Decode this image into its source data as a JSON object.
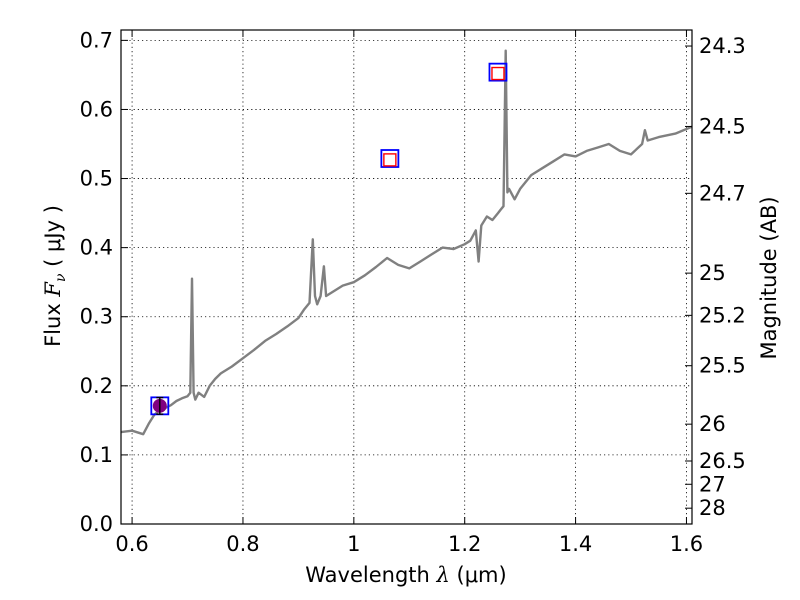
{
  "chart_data": {
    "type": "line",
    "xlabel": "Wavelength  λ (μm)",
    "xlabel_parts": {
      "prefix": "Wavelength  ",
      "symbol": "λ",
      "unit": " (μm)"
    },
    "ylabel": "Flux  Fν  ( μJy )",
    "ylabel_parts": {
      "prefix": "Flux  ",
      "symbol": "F",
      "subscript": "ν",
      "unit": "  ( μJy )"
    },
    "y2label": "Magnitude (AB)",
    "xlim": [
      0.58,
      1.61
    ],
    "ylim": [
      0.0,
      0.715
    ],
    "xticks": [
      {
        "value": 0.6,
        "label": "0.6"
      },
      {
        "value": 0.8,
        "label": "0.8"
      },
      {
        "value": 1.0,
        "label": "1"
      },
      {
        "value": 1.2,
        "label": "1.2"
      },
      {
        "value": 1.4,
        "label": "1.4"
      },
      {
        "value": 1.6,
        "label": "1.6"
      }
    ],
    "yticks": [
      {
        "value": 0.0,
        "label": "0.0"
      },
      {
        "value": 0.1,
        "label": "0.1"
      },
      {
        "value": 0.2,
        "label": "0.2"
      },
      {
        "value": 0.3,
        "label": "0.3"
      },
      {
        "value": 0.4,
        "label": "0.4"
      },
      {
        "value": 0.5,
        "label": "0.5"
      },
      {
        "value": 0.6,
        "label": "0.6"
      },
      {
        "value": 0.7,
        "label": "0.7"
      }
    ],
    "y2ticks": [
      {
        "flux": 0.6918,
        "label": "24.3"
      },
      {
        "flux": 0.5754,
        "label": "24.5"
      },
      {
        "flux": 0.4786,
        "label": "24.7"
      },
      {
        "flux": 0.3631,
        "label": "25"
      },
      {
        "flux": 0.302,
        "label": "25.2"
      },
      {
        "flux": 0.2291,
        "label": "25.5"
      },
      {
        "flux": 0.1445,
        "label": "26"
      },
      {
        "flux": 0.0912,
        "label": "26.5"
      },
      {
        "flux": 0.0575,
        "label": "27"
      },
      {
        "flux": 0.0229,
        "label": "28"
      }
    ],
    "grid": true,
    "spectrum": {
      "color": "#808080",
      "x": [
        0.58,
        0.6,
        0.62,
        0.63,
        0.64,
        0.65,
        0.66,
        0.67,
        0.68,
        0.69,
        0.7,
        0.705,
        0.708,
        0.711,
        0.714,
        0.72,
        0.73,
        0.74,
        0.75,
        0.76,
        0.78,
        0.8,
        0.82,
        0.84,
        0.86,
        0.88,
        0.9,
        0.91,
        0.92,
        0.926,
        0.93,
        0.934,
        0.94,
        0.946,
        0.95,
        0.96,
        0.98,
        1.0,
        1.02,
        1.04,
        1.06,
        1.08,
        1.1,
        1.12,
        1.14,
        1.16,
        1.18,
        1.2,
        1.21,
        1.22,
        1.225,
        1.23,
        1.24,
        1.25,
        1.26,
        1.265,
        1.27,
        1.274,
        1.277,
        1.28,
        1.29,
        1.3,
        1.32,
        1.34,
        1.36,
        1.38,
        1.4,
        1.42,
        1.44,
        1.46,
        1.48,
        1.5,
        1.52,
        1.525,
        1.53,
        1.55,
        1.58,
        1.61
      ],
      "y": [
        0.133,
        0.135,
        0.13,
        0.145,
        0.158,
        0.165,
        0.168,
        0.172,
        0.178,
        0.182,
        0.185,
        0.19,
        0.355,
        0.19,
        0.18,
        0.19,
        0.184,
        0.2,
        0.21,
        0.218,
        0.228,
        0.24,
        0.252,
        0.265,
        0.275,
        0.286,
        0.298,
        0.31,
        0.32,
        0.412,
        0.33,
        0.318,
        0.33,
        0.373,
        0.33,
        0.335,
        0.345,
        0.35,
        0.36,
        0.372,
        0.385,
        0.375,
        0.37,
        0.38,
        0.39,
        0.4,
        0.398,
        0.405,
        0.41,
        0.425,
        0.38,
        0.432,
        0.445,
        0.44,
        0.45,
        0.455,
        0.46,
        0.685,
        0.48,
        0.485,
        0.47,
        0.485,
        0.505,
        0.515,
        0.525,
        0.535,
        0.532,
        0.54,
        0.545,
        0.55,
        0.54,
        0.535,
        0.55,
        0.57,
        0.555,
        0.56,
        0.565,
        0.575
      ]
    },
    "photometry": [
      {
        "x": 0.65,
        "y": 0.171,
        "model": 0.171,
        "filled": true,
        "yerr": 0.012
      },
      {
        "x": 1.065,
        "y": 0.529,
        "model": 0.527,
        "filled": false,
        "yerr": 0
      },
      {
        "x": 1.26,
        "y": 0.654,
        "model": 0.652,
        "filled": false,
        "yerr": 0
      }
    ],
    "colors": {
      "observed_square": "#0000ff",
      "model_square": "#ff0000",
      "filled_point": "#800080",
      "error_bar": "#000000"
    }
  }
}
